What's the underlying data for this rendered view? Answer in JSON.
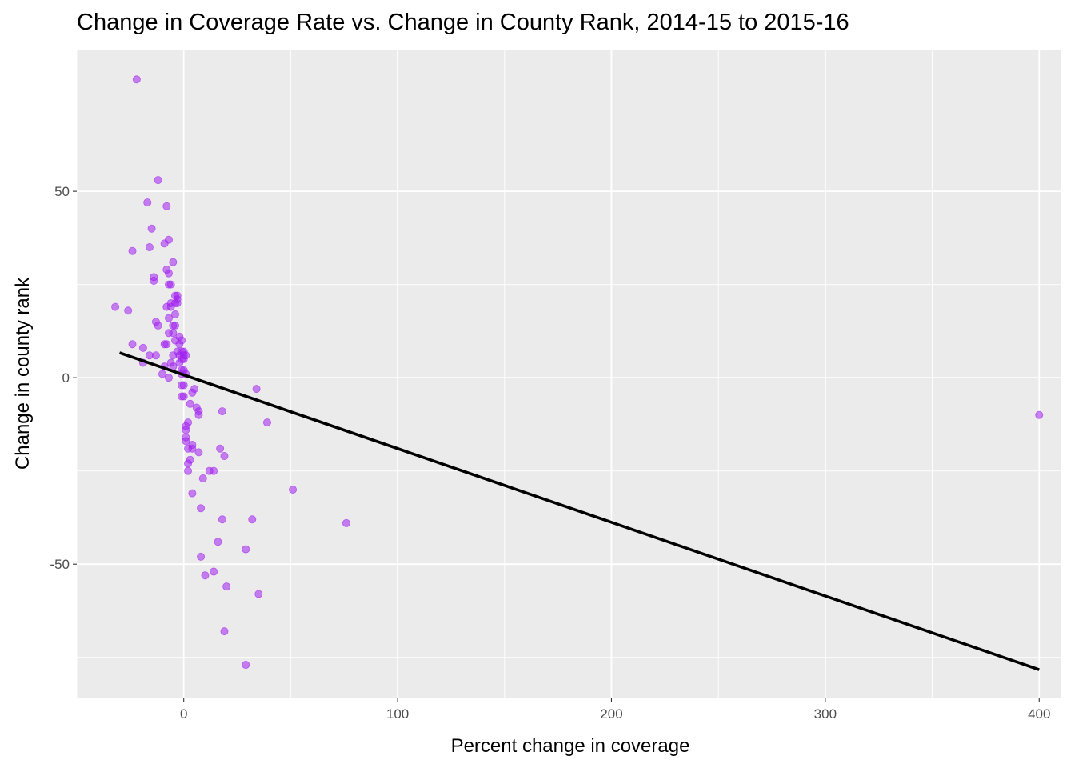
{
  "chart_data": {
    "type": "scatter",
    "title": "Change in Coverage Rate vs. Change in County Rank, 2014-15 to 2015-16",
    "xlabel": "Percent change in coverage",
    "ylabel": "Change in county rank",
    "xlim": [
      -50,
      410
    ],
    "ylim": [
      -86,
      88
    ],
    "x_ticks": [
      0,
      100,
      200,
      300,
      400
    ],
    "y_ticks": [
      -50,
      0,
      50
    ],
    "grid": true,
    "point_color": "#a020f0",
    "line_color": "#000000",
    "panel_background": "#ebebeb",
    "trend_line": {
      "x": [
        -30,
        400
      ],
      "y": [
        6.7,
        -78.3
      ]
    },
    "points": [
      {
        "x": -22,
        "y": 80
      },
      {
        "x": -12,
        "y": 53
      },
      {
        "x": -17,
        "y": 47
      },
      {
        "x": -8,
        "y": 46
      },
      {
        "x": -15,
        "y": 40
      },
      {
        "x": -7,
        "y": 37
      },
      {
        "x": -9,
        "y": 36
      },
      {
        "x": -16,
        "y": 35
      },
      {
        "x": -24,
        "y": 34
      },
      {
        "x": -5,
        "y": 31
      },
      {
        "x": -8,
        "y": 29
      },
      {
        "x": -7,
        "y": 28
      },
      {
        "x": -14,
        "y": 27
      },
      {
        "x": -14,
        "y": 26
      },
      {
        "x": -7,
        "y": 25
      },
      {
        "x": -6,
        "y": 25
      },
      {
        "x": -4,
        "y": 22
      },
      {
        "x": -3,
        "y": 22
      },
      {
        "x": -3,
        "y": 21
      },
      {
        "x": -4,
        "y": 20
      },
      {
        "x": -3,
        "y": 20
      },
      {
        "x": -6,
        "y": 20
      },
      {
        "x": -8,
        "y": 19
      },
      {
        "x": -6,
        "y": 19
      },
      {
        "x": -32,
        "y": 19
      },
      {
        "x": -26,
        "y": 18
      },
      {
        "x": -4,
        "y": 17
      },
      {
        "x": -7,
        "y": 16
      },
      {
        "x": -13,
        "y": 15
      },
      {
        "x": -5,
        "y": 14
      },
      {
        "x": -12,
        "y": 14
      },
      {
        "x": -4,
        "y": 14
      },
      {
        "x": -7,
        "y": 12
      },
      {
        "x": -5,
        "y": 12
      },
      {
        "x": -2,
        "y": 11
      },
      {
        "x": -4,
        "y": 10
      },
      {
        "x": -1,
        "y": 10
      },
      {
        "x": -2,
        "y": 9
      },
      {
        "x": -8,
        "y": 9
      },
      {
        "x": -9,
        "y": 9
      },
      {
        "x": -24,
        "y": 9
      },
      {
        "x": -19,
        "y": 8
      },
      {
        "x": -3,
        "y": 7
      },
      {
        "x": -1,
        "y": 7
      },
      {
        "x": 0,
        "y": 7
      },
      {
        "x": -5,
        "y": 6
      },
      {
        "x": -2,
        "y": 6
      },
      {
        "x": 0,
        "y": 6
      },
      {
        "x": 1,
        "y": 6
      },
      {
        "x": -16,
        "y": 6
      },
      {
        "x": -13,
        "y": 6
      },
      {
        "x": -1,
        "y": 5
      },
      {
        "x": 0,
        "y": 5
      },
      {
        "x": -2,
        "y": 4
      },
      {
        "x": -6,
        "y": 4
      },
      {
        "x": -19,
        "y": 4
      },
      {
        "x": -9,
        "y": 3
      },
      {
        "x": -5,
        "y": 3
      },
      {
        "x": -1,
        "y": 2
      },
      {
        "x": 0,
        "y": 2
      },
      {
        "x": -10,
        "y": 1
      },
      {
        "x": -1,
        "y": 1
      },
      {
        "x": 1,
        "y": 1
      },
      {
        "x": -7,
        "y": 0
      },
      {
        "x": -1,
        "y": -2
      },
      {
        "x": 0,
        "y": -2
      },
      {
        "x": 5,
        "y": -3
      },
      {
        "x": 34,
        "y": -3
      },
      {
        "x": 4,
        "y": -4
      },
      {
        "x": -1,
        "y": -5
      },
      {
        "x": 0,
        "y": -5
      },
      {
        "x": 3,
        "y": -7
      },
      {
        "x": 6,
        "y": -8
      },
      {
        "x": 7,
        "y": -9
      },
      {
        "x": 18,
        "y": -9
      },
      {
        "x": 7,
        "y": -10
      },
      {
        "x": 400,
        "y": -10
      },
      {
        "x": 2,
        "y": -12
      },
      {
        "x": 39,
        "y": -12
      },
      {
        "x": 1,
        "y": -13
      },
      {
        "x": 1,
        "y": -14
      },
      {
        "x": 1,
        "y": -16
      },
      {
        "x": 1,
        "y": -17
      },
      {
        "x": 4,
        "y": -18
      },
      {
        "x": 4,
        "y": -19
      },
      {
        "x": 2,
        "y": -19
      },
      {
        "x": 17,
        "y": -19
      },
      {
        "x": 7,
        "y": -20
      },
      {
        "x": 19,
        "y": -21
      },
      {
        "x": 3,
        "y": -22
      },
      {
        "x": 2,
        "y": -23
      },
      {
        "x": 12,
        "y": -25
      },
      {
        "x": 14,
        "y": -25
      },
      {
        "x": 2,
        "y": -25
      },
      {
        "x": 9,
        "y": -27
      },
      {
        "x": 51,
        "y": -30
      },
      {
        "x": 4,
        "y": -31
      },
      {
        "x": 8,
        "y": -35
      },
      {
        "x": 18,
        "y": -38
      },
      {
        "x": 32,
        "y": -38
      },
      {
        "x": 76,
        "y": -39
      },
      {
        "x": 16,
        "y": -44
      },
      {
        "x": 29,
        "y": -46
      },
      {
        "x": 8,
        "y": -48
      },
      {
        "x": 14,
        "y": -52
      },
      {
        "x": 10,
        "y": -53
      },
      {
        "x": 20,
        "y": -56
      },
      {
        "x": 35,
        "y": -58
      },
      {
        "x": 19,
        "y": -68
      },
      {
        "x": 29,
        "y": -77
      }
    ]
  }
}
